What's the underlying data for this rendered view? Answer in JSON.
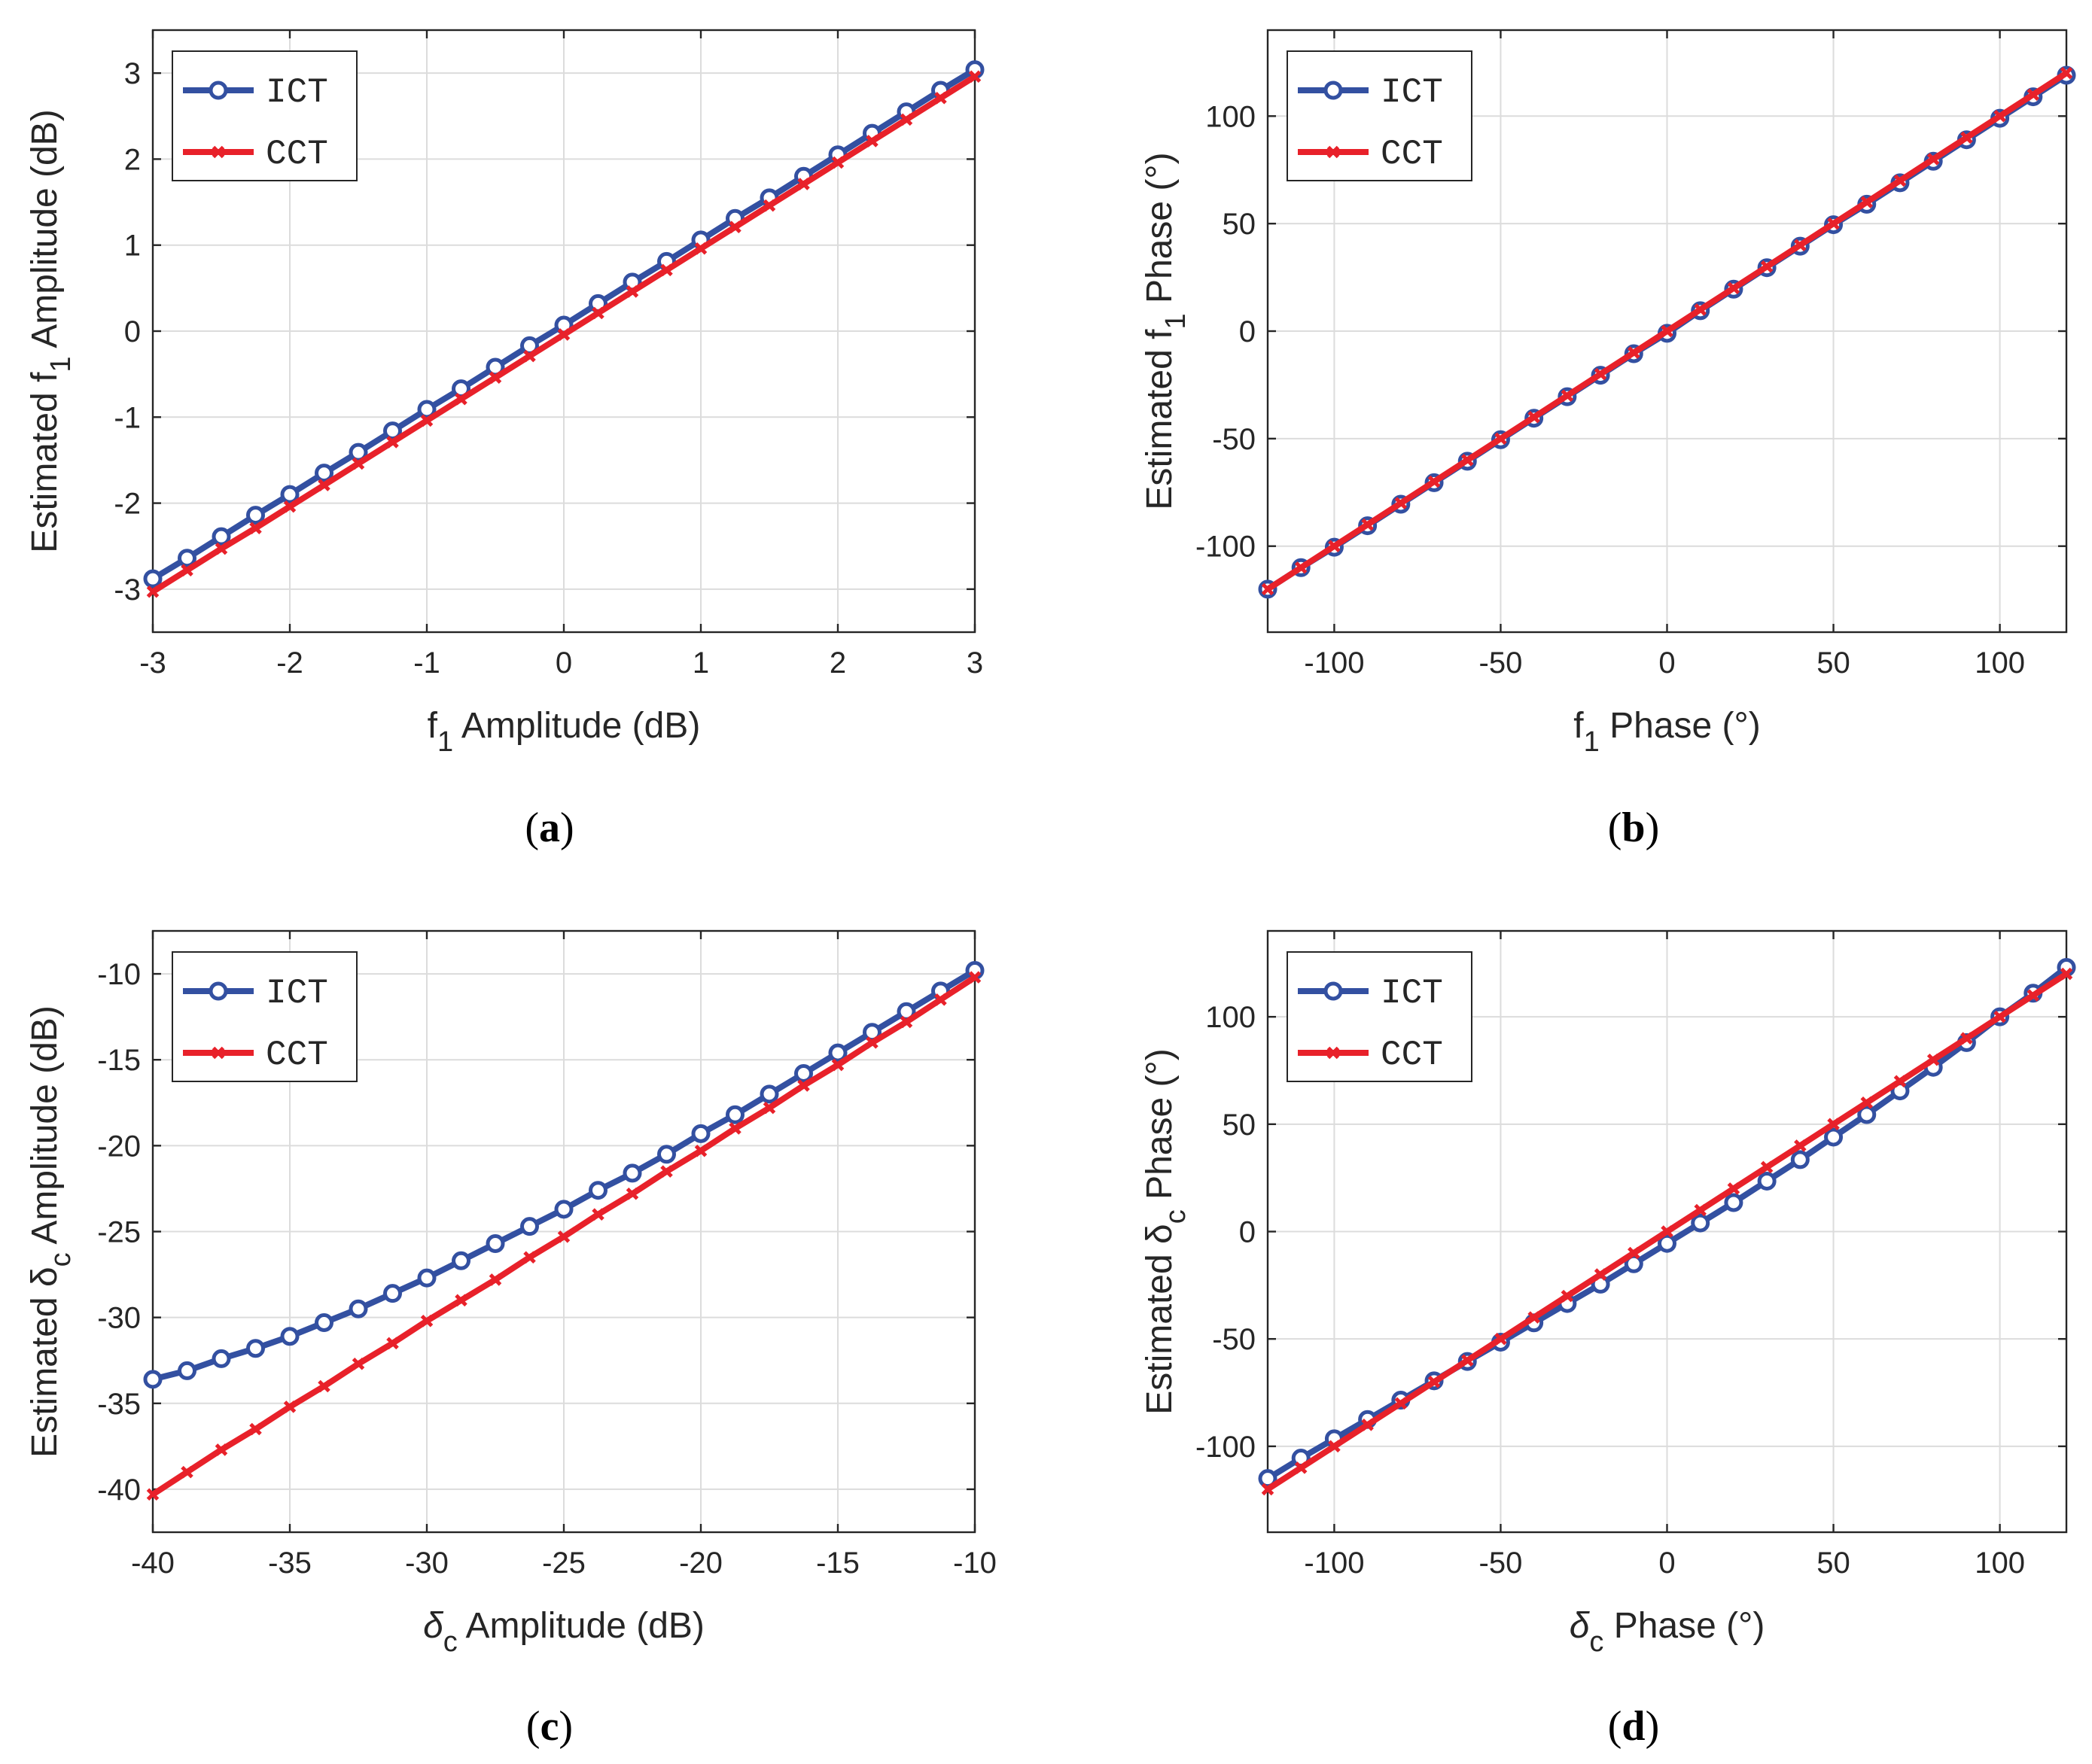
{
  "figure": {
    "captions": [
      "(a)",
      "(b)",
      "(c)",
      "(d)"
    ]
  },
  "colors": {
    "ict": "#3350a1",
    "cct": "#e8212a"
  },
  "chart_data": [
    {
      "id": "a",
      "type": "line",
      "caption_letter": "a",
      "xlabel": {
        "prefix": "f",
        "sub": "1",
        "suffix": " Amplitude (dB)"
      },
      "ylabel": {
        "prefix": "Estimated f",
        "sub": "1",
        "suffix": " Amplitude (dB)"
      },
      "xlim": [
        -3,
        3
      ],
      "ylim": [
        -3.5,
        3.5
      ],
      "xticks": [
        -3,
        -2,
        -1,
        0,
        1,
        2,
        3
      ],
      "yticks": [
        -3,
        -2,
        -1,
        0,
        1,
        2,
        3
      ],
      "grid": true,
      "legend": {
        "position": "top-left",
        "entries": [
          "ICT",
          "CCT"
        ]
      },
      "series": [
        {
          "name": "ICT",
          "marker": "circle",
          "x": [
            -3,
            -2.75,
            -2.5,
            -2.25,
            -2,
            -1.75,
            -1.5,
            -1.25,
            -1,
            -0.75,
            -0.5,
            -0.25,
            0,
            0.25,
            0.5,
            0.75,
            1,
            1.25,
            1.5,
            1.75,
            2,
            2.25,
            2.5,
            2.75,
            3
          ],
          "y": [
            -2.88,
            -2.64,
            -2.39,
            -2.14,
            -1.9,
            -1.65,
            -1.41,
            -1.16,
            -0.91,
            -0.67,
            -0.42,
            -0.17,
            0.07,
            0.32,
            0.57,
            0.81,
            1.06,
            1.31,
            1.55,
            1.8,
            2.05,
            2.3,
            2.55,
            2.8,
            3.04
          ]
        },
        {
          "name": "CCT",
          "marker": "x",
          "x": [
            -3,
            -2.75,
            -2.5,
            -2.25,
            -2,
            -1.75,
            -1.5,
            -1.25,
            -1,
            -0.75,
            -0.5,
            -0.25,
            0,
            0.25,
            0.5,
            0.75,
            1,
            1.25,
            1.5,
            1.75,
            2,
            2.25,
            2.5,
            2.75,
            3
          ],
          "y": [
            -3.03,
            -2.78,
            -2.53,
            -2.29,
            -2.04,
            -1.79,
            -1.54,
            -1.29,
            -1.04,
            -0.79,
            -0.54,
            -0.29,
            -0.04,
            0.21,
            0.46,
            0.71,
            0.96,
            1.21,
            1.46,
            1.71,
            1.96,
            2.21,
            2.46,
            2.71,
            2.96
          ]
        }
      ]
    },
    {
      "id": "b",
      "type": "line",
      "caption_letter": "b",
      "xlabel": {
        "prefix": "f",
        "sub": "1",
        "suffix": " Phase (°)"
      },
      "ylabel": {
        "prefix": "Estimated f",
        "sub": "1",
        "suffix": " Phase (°)"
      },
      "xlim": [
        -120,
        120
      ],
      "ylim": [
        -140,
        140
      ],
      "xticks": [
        -100,
        -50,
        0,
        50,
        100
      ],
      "yticks": [
        -100,
        -50,
        0,
        50,
        100
      ],
      "grid": true,
      "legend": {
        "position": "top-left",
        "entries": [
          "ICT",
          "CCT"
        ]
      },
      "series": [
        {
          "name": "ICT",
          "marker": "circle",
          "x": [
            -120,
            -110,
            -100,
            -90,
            -80,
            -70,
            -60,
            -50,
            -40,
            -30,
            -20,
            -10,
            0,
            10,
            20,
            30,
            40,
            50,
            60,
            70,
            80,
            90,
            100,
            110,
            120
          ],
          "y": [
            -120,
            -110,
            -100.5,
            -90.5,
            -80.5,
            -70.5,
            -60.5,
            -50.5,
            -40.5,
            -30.5,
            -20.5,
            -10.5,
            -1,
            9.5,
            19.5,
            29.5,
            39.5,
            49.5,
            59,
            69,
            79,
            89,
            99,
            109,
            119
          ]
        },
        {
          "name": "CCT",
          "marker": "x",
          "x": [
            -120,
            -110,
            -100,
            -90,
            -80,
            -70,
            -60,
            -50,
            -40,
            -30,
            -20,
            -10,
            0,
            10,
            20,
            30,
            40,
            50,
            60,
            70,
            80,
            90,
            100,
            110,
            120
          ],
          "y": [
            -120,
            -110,
            -100,
            -90,
            -80,
            -70,
            -60,
            -50,
            -40,
            -30,
            -20,
            -10,
            0,
            10,
            20,
            30,
            40,
            50,
            60,
            70,
            80,
            90,
            100,
            110,
            120
          ]
        }
      ]
    },
    {
      "id": "c",
      "type": "line",
      "caption_letter": "c",
      "xlabel": {
        "prefix": "δ",
        "sub": "c",
        "suffix": " Amplitude (dB)"
      },
      "ylabel": {
        "prefix": "Estimated δ",
        "sub": "c",
        "suffix": " Amplitude (dB)"
      },
      "xlim": [
        -40,
        -10
      ],
      "ylim": [
        -42.5,
        -7.5
      ],
      "xticks": [
        -40,
        -35,
        -30,
        -25,
        -20,
        -15,
        -10
      ],
      "yticks": [
        -40,
        -35,
        -30,
        -25,
        -20,
        -15,
        -10
      ],
      "grid": true,
      "legend": {
        "position": "top-left",
        "entries": [
          "ICT",
          "CCT"
        ]
      },
      "series": [
        {
          "name": "ICT",
          "marker": "circle",
          "x": [
            -40,
            -38.75,
            -37.5,
            -36.25,
            -35,
            -33.75,
            -32.5,
            -31.25,
            -30,
            -28.75,
            -27.5,
            -26.25,
            -25,
            -23.75,
            -22.5,
            -21.25,
            -20,
            -18.75,
            -17.5,
            -16.25,
            -15,
            -13.75,
            -12.5,
            -11.25,
            -10
          ],
          "y": [
            -33.6,
            -33.1,
            -32.4,
            -31.8,
            -31.1,
            -30.3,
            -29.5,
            -28.6,
            -27.7,
            -26.7,
            -25.7,
            -24.7,
            -23.7,
            -22.6,
            -21.6,
            -20.5,
            -19.3,
            -18.2,
            -17,
            -15.8,
            -14.6,
            -13.4,
            -12.2,
            -11,
            -9.8
          ]
        },
        {
          "name": "CCT",
          "marker": "x",
          "x": [
            -40,
            -38.75,
            -37.5,
            -36.25,
            -35,
            -33.75,
            -32.5,
            -31.25,
            -30,
            -28.75,
            -27.5,
            -26.25,
            -25,
            -23.75,
            -22.5,
            -21.25,
            -20,
            -18.75,
            -17.5,
            -16.25,
            -15,
            -13.75,
            -12.5,
            -11.25,
            -10
          ],
          "y": [
            -40.3,
            -39,
            -37.7,
            -36.5,
            -35.2,
            -34,
            -32.7,
            -31.5,
            -30.2,
            -29,
            -27.8,
            -26.5,
            -25.3,
            -24,
            -22.8,
            -21.5,
            -20.3,
            -19,
            -17.8,
            -16.5,
            -15.3,
            -14,
            -12.8,
            -11.5,
            -10.2
          ]
        }
      ]
    },
    {
      "id": "d",
      "type": "line",
      "caption_letter": "d",
      "xlabel": {
        "prefix": "δ",
        "sub": "c",
        "suffix": " Phase (°)"
      },
      "ylabel": {
        "prefix": "Estimated δ",
        "sub": "c",
        "suffix": " Phase (°)"
      },
      "xlim": [
        -120,
        120
      ],
      "ylim": [
        -140,
        140
      ],
      "xticks": [
        -100,
        -50,
        0,
        50,
        100
      ],
      "yticks": [
        -100,
        -50,
        0,
        50,
        100
      ],
      "grid": true,
      "legend": {
        "position": "top-left",
        "entries": [
          "ICT",
          "CCT"
        ]
      },
      "series": [
        {
          "name": "ICT",
          "marker": "circle",
          "x": [
            -120,
            -110,
            -100,
            -90,
            -80,
            -70,
            -60,
            -50,
            -40,
            -30,
            -20,
            -10,
            0,
            10,
            20,
            30,
            40,
            50,
            60,
            70,
            80,
            90,
            100,
            110,
            120
          ],
          "y": [
            -115,
            -105.5,
            -96.5,
            -87.5,
            -78.5,
            -69.5,
            -60.5,
            -51.5,
            -42.5,
            -33.5,
            -24.5,
            -15,
            -5.5,
            4,
            13.5,
            23.5,
            33.5,
            44,
            54.5,
            65.5,
            76.5,
            88,
            100,
            111,
            123
          ]
        },
        {
          "name": "CCT",
          "marker": "x",
          "x": [
            -120,
            -110,
            -100,
            -90,
            -80,
            -70,
            -60,
            -50,
            -40,
            -30,
            -20,
            -10,
            0,
            10,
            20,
            30,
            40,
            50,
            60,
            70,
            80,
            90,
            100,
            110,
            120
          ],
          "y": [
            -120,
            -110,
            -100,
            -90,
            -80,
            -70,
            -60,
            -50,
            -40,
            -30,
            -20,
            -10,
            0,
            10,
            20,
            30,
            40,
            50,
            60,
            70,
            80,
            90,
            100,
            110,
            120
          ]
        }
      ]
    }
  ]
}
